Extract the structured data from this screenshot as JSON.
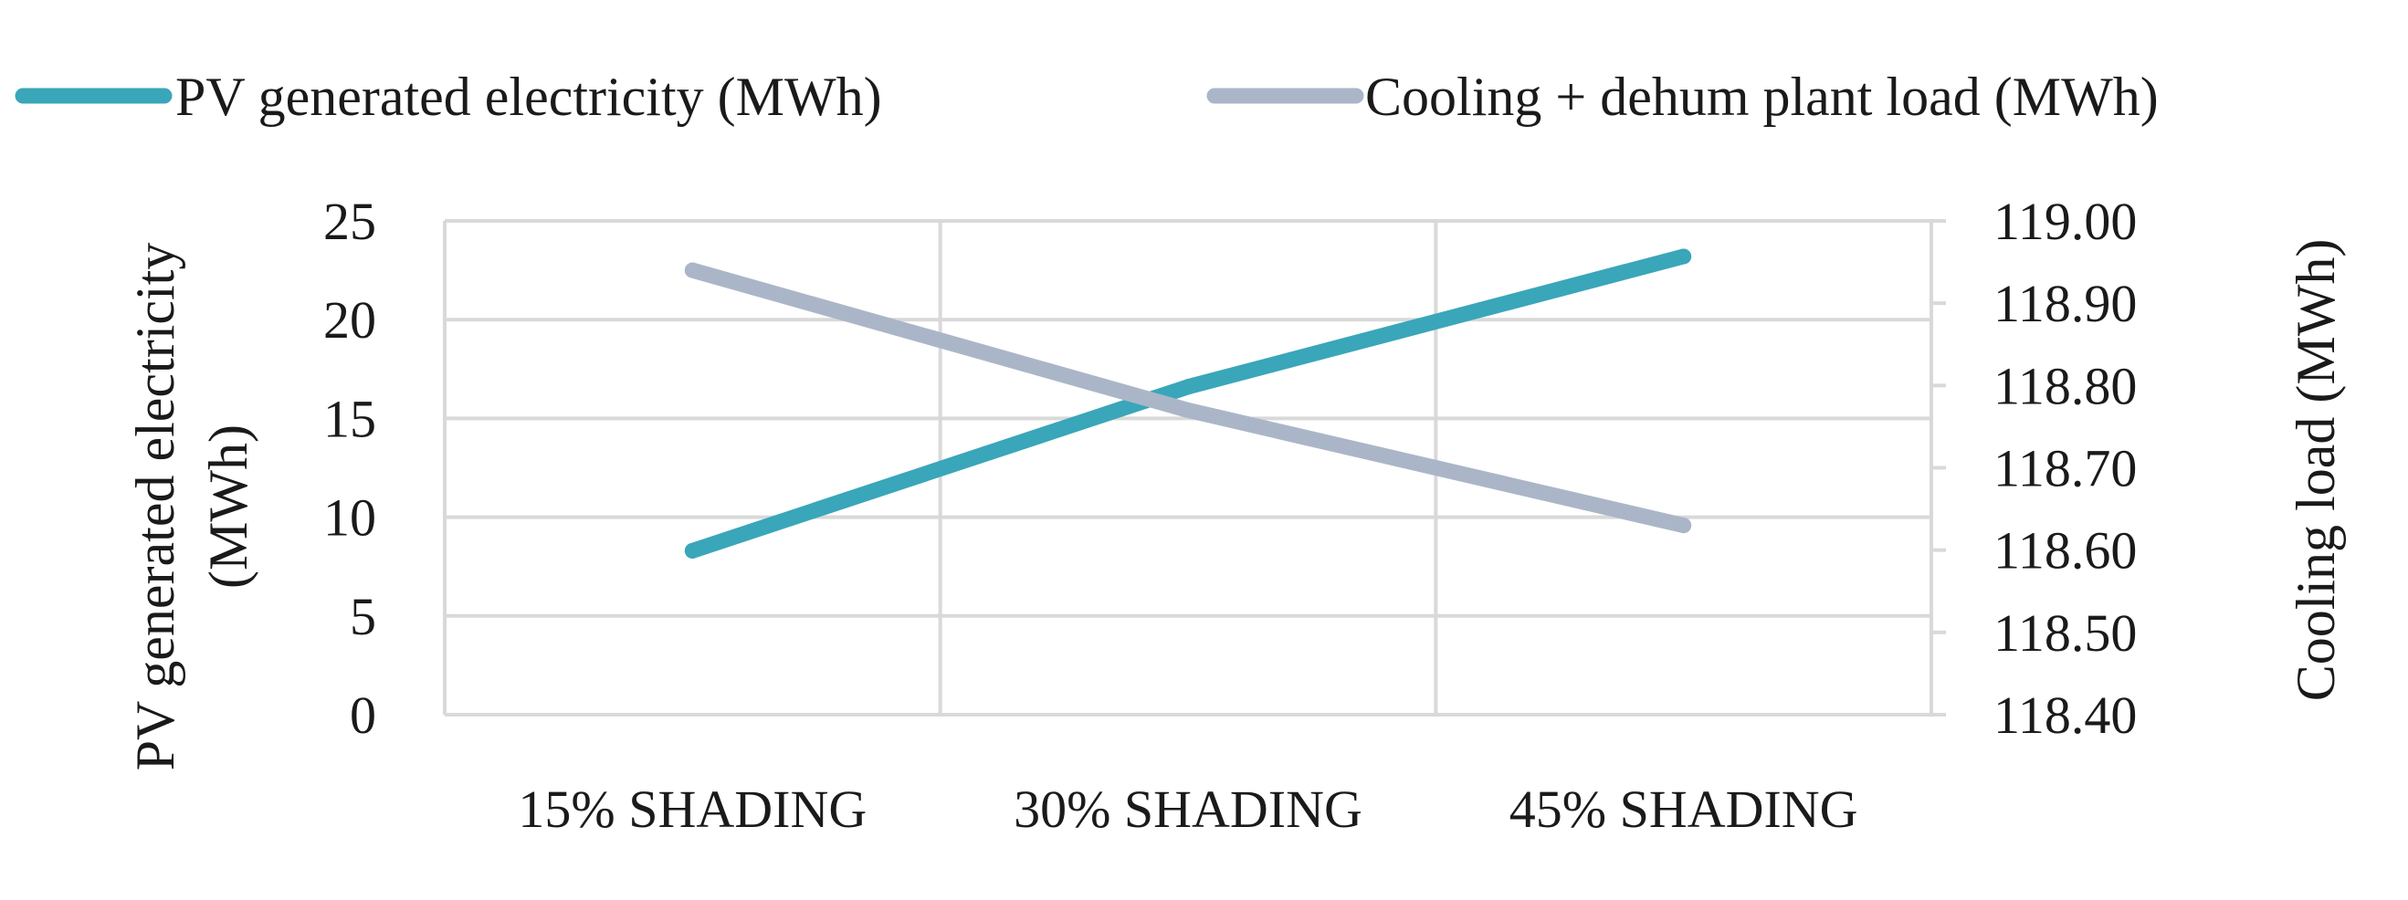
{
  "chart_data": {
    "type": "line",
    "title": "",
    "categories": [
      "15% SHADING",
      "30% SHADING",
      "45% SHADING"
    ],
    "series": [
      {
        "name": "PV generated electricity (MWh)",
        "axis": "left",
        "color": "#3aa6b9",
        "values": [
          8.3,
          16.6,
          23.2
        ]
      },
      {
        "name": "Cooling + dehum plant load (MWh)",
        "axis": "right",
        "color": "#aab6c8",
        "values": [
          118.94,
          118.77,
          118.63
        ]
      }
    ],
    "y_left": {
      "label_line1": "PV generated electricity",
      "label_line2": "(MWh)",
      "ylim": [
        0,
        25
      ],
      "ticks": [
        "0",
        "5",
        "10",
        "15",
        "20",
        "25"
      ]
    },
    "y_right": {
      "label": "Cooling load (MWh)",
      "ylim": [
        118.4,
        119.0
      ],
      "ticks": [
        "118.40",
        "118.50",
        "118.60",
        "118.70",
        "118.80",
        "118.90",
        "119.00"
      ]
    },
    "grid": true,
    "legend_position": "top",
    "gridline_color": "#d9d9d9"
  }
}
